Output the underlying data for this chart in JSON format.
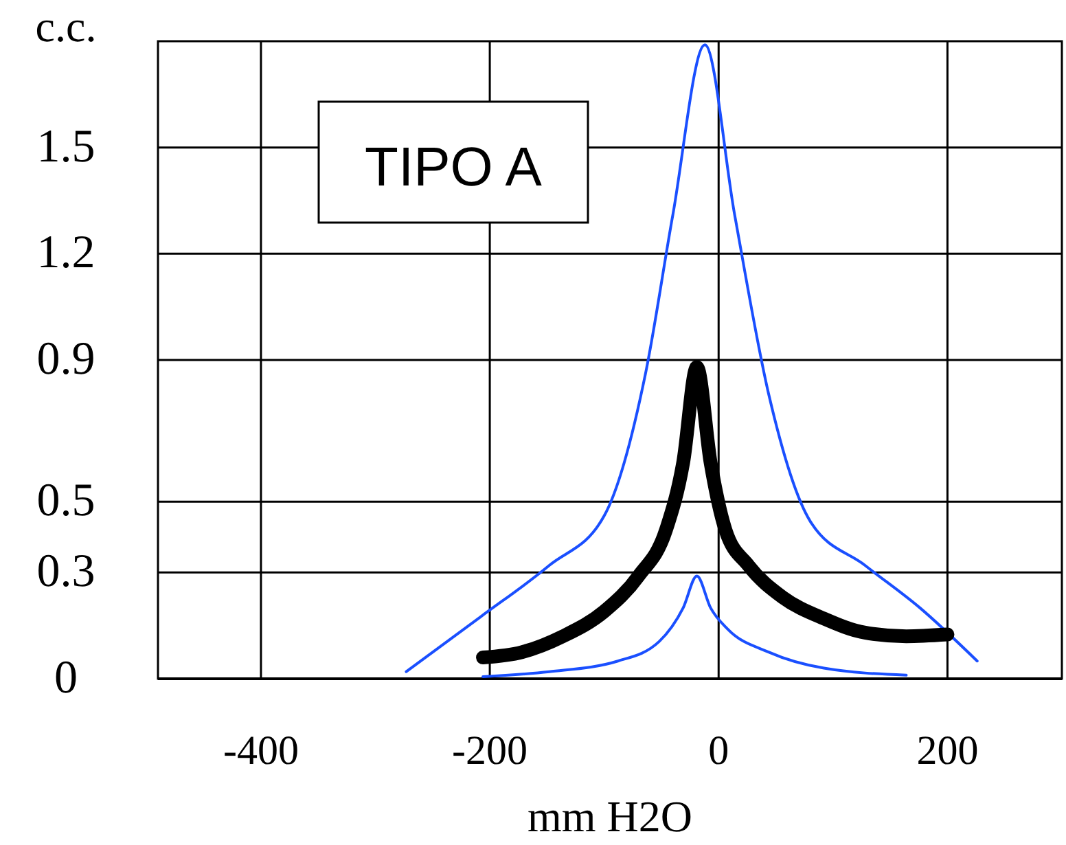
{
  "chart_data": {
    "type": "line",
    "xlabel": "mm H2O",
    "ylabel": "c.c.",
    "annotations": [
      "TIPO A"
    ],
    "xlim": [
      -490,
      300
    ],
    "xticks": [
      -400,
      -200,
      0,
      200
    ],
    "ylim": [
      0,
      1.8
    ],
    "yticks": [
      0,
      0.3,
      0.5,
      0.9,
      1.2,
      1.5
    ],
    "grid": true,
    "marker": "none",
    "series": [
      {
        "color": "#1a4fff",
        "x": [
          -273,
          -208,
          -148,
          -100,
          -64,
          -40,
          -12,
          14,
          44,
          80,
          128,
          176,
          226
        ],
        "values": [
          0.02,
          0.175,
          0.32,
          0.46,
          0.86,
          1.31,
          1.79,
          1.31,
          0.8,
          0.445,
          0.32,
          0.2,
          0.05
        ]
      },
      {
        "color": "#1a4fff",
        "x": [
          -206,
          -148,
          -88,
          -52,
          -31,
          -19,
          -7,
          8,
          44,
          92,
          164
        ],
        "values": [
          0.006,
          0.02,
          0.05,
          0.105,
          0.2,
          0.29,
          0.2,
          0.14,
          0.075,
          0.03,
          0.01
        ]
      },
      {
        "color": "#000000",
        "x": [
          -206,
          -172,
          -136,
          -100,
          -70,
          -46,
          -31,
          -19,
          -7,
          6,
          26,
          56,
          92,
          128,
          164,
          200
        ],
        "values": [
          0.06,
          0.075,
          0.12,
          0.19,
          0.29,
          0.42,
          0.61,
          0.88,
          0.61,
          0.42,
          0.32,
          0.23,
          0.17,
          0.13,
          0.12,
          0.125
        ]
      }
    ]
  }
}
